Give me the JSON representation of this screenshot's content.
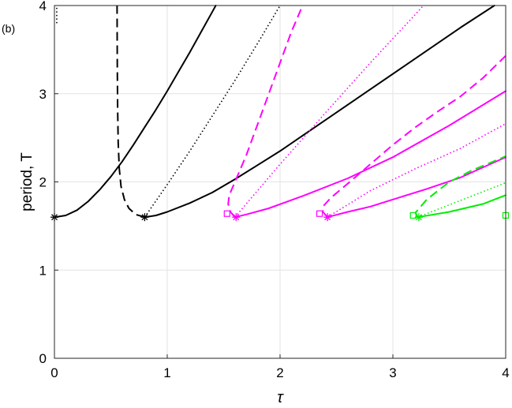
{
  "panel_label": "(b)",
  "chart_data": {
    "type": "line",
    "title": "",
    "xlabel": "τ",
    "ylabel": "period, T",
    "xlim": [
      0,
      4
    ],
    "ylim": [
      0,
      4
    ],
    "xticks": [
      0,
      1,
      2,
      3,
      4
    ],
    "yticks": [
      0,
      1,
      2,
      3,
      4
    ],
    "grid": true,
    "legend": "none",
    "series": [
      {
        "color": "#000000",
        "dash": "solid",
        "points": [
          [
            0,
            1.6
          ],
          [
            0.1,
            1.62
          ],
          [
            0.2,
            1.68
          ],
          [
            0.3,
            1.78
          ],
          [
            0.4,
            1.91
          ],
          [
            0.5,
            2.06
          ],
          [
            0.6,
            2.23
          ],
          [
            0.7,
            2.42
          ],
          [
            0.8,
            2.62
          ],
          [
            0.9,
            2.82
          ],
          [
            1.0,
            3.03
          ],
          [
            1.1,
            3.25
          ],
          [
            1.2,
            3.47
          ],
          [
            1.3,
            3.7
          ],
          [
            1.4,
            3.93
          ],
          [
            1.43,
            4.0
          ]
        ]
      },
      {
        "color": "#000000",
        "dash": "dashed",
        "points": [
          [
            0.8,
            1.6
          ],
          [
            0.72,
            1.63
          ],
          [
            0.66,
            1.7
          ],
          [
            0.62,
            1.8
          ],
          [
            0.59,
            1.95
          ],
          [
            0.575,
            2.15
          ],
          [
            0.565,
            2.45
          ],
          [
            0.56,
            2.85
          ],
          [
            0.557,
            3.3
          ],
          [
            0.556,
            3.7
          ],
          [
            0.555,
            4.0
          ]
        ]
      },
      {
        "color": "#000000",
        "dash": "dotted",
        "points": [
          [
            0.8,
            1.6
          ],
          [
            1.0,
            1.97
          ],
          [
            1.2,
            2.35
          ],
          [
            1.4,
            2.75
          ],
          [
            1.6,
            3.15
          ],
          [
            1.8,
            3.57
          ],
          [
            2.0,
            4.0
          ]
        ]
      },
      {
        "color": "#000000",
        "dash": "solid",
        "points": [
          [
            0.8,
            1.6
          ],
          [
            0.9,
            1.62
          ],
          [
            1.0,
            1.66
          ],
          [
            1.2,
            1.76
          ],
          [
            1.4,
            1.88
          ],
          [
            1.6,
            2.03
          ],
          [
            1.8,
            2.19
          ],
          [
            2.0,
            2.35
          ],
          [
            2.4,
            2.7
          ],
          [
            2.8,
            3.05
          ],
          [
            3.2,
            3.4
          ],
          [
            3.6,
            3.75
          ],
          [
            3.9,
            4.0
          ]
        ]
      },
      {
        "color": "#000000",
        "dash": "dotted",
        "points": [
          [
            0.02,
            3.8
          ],
          [
            0.02,
            4.0
          ]
        ]
      },
      {
        "color": "#ff00ff",
        "dash": "dashed",
        "points": [
          [
            1.6,
            1.6
          ],
          [
            1.56,
            1.66
          ],
          [
            1.54,
            1.75
          ],
          [
            1.55,
            1.85
          ],
          [
            1.6,
            2.0
          ],
          [
            1.7,
            2.3
          ],
          [
            1.8,
            2.65
          ],
          [
            1.9,
            3.0
          ],
          [
            2.0,
            3.35
          ],
          [
            2.1,
            3.7
          ],
          [
            2.2,
            4.0
          ]
        ]
      },
      {
        "color": "#ff00ff",
        "dash": "dotted",
        "points": [
          [
            1.6,
            1.6
          ],
          [
            2.0,
            2.2
          ],
          [
            2.4,
            2.78
          ],
          [
            2.8,
            3.35
          ],
          [
            3.2,
            3.9
          ],
          [
            3.27,
            4.0
          ]
        ]
      },
      {
        "color": "#ff00ff",
        "dash": "solid",
        "points": [
          [
            1.6,
            1.6
          ],
          [
            1.7,
            1.63
          ],
          [
            1.9,
            1.7
          ],
          [
            2.2,
            1.84
          ],
          [
            2.6,
            2.04
          ],
          [
            3.0,
            2.28
          ],
          [
            3.5,
            2.64
          ],
          [
            4.0,
            3.03
          ]
        ]
      },
      {
        "color": "#ff00ff",
        "dash": "dashed",
        "points": [
          [
            2.42,
            1.6
          ],
          [
            2.38,
            1.66
          ],
          [
            2.38,
            1.72
          ],
          [
            2.45,
            1.82
          ],
          [
            2.6,
            1.98
          ],
          [
            2.8,
            2.2
          ],
          [
            3.0,
            2.42
          ],
          [
            3.2,
            2.62
          ],
          [
            3.4,
            2.8
          ],
          [
            3.6,
            2.97
          ],
          [
            3.8,
            3.18
          ],
          [
            4.0,
            3.43
          ]
        ]
      },
      {
        "color": "#ff00ff",
        "dash": "dotted",
        "points": [
          [
            2.42,
            1.6
          ],
          [
            2.8,
            1.9
          ],
          [
            3.2,
            2.15
          ],
          [
            3.6,
            2.38
          ],
          [
            4.0,
            2.66
          ]
        ]
      },
      {
        "color": "#ff00ff",
        "dash": "solid",
        "points": [
          [
            2.42,
            1.6
          ],
          [
            2.6,
            1.66
          ],
          [
            2.8,
            1.72
          ],
          [
            3.0,
            1.8
          ],
          [
            3.3,
            1.92
          ],
          [
            3.6,
            2.05
          ],
          [
            4.0,
            2.28
          ]
        ]
      },
      {
        "color": "#00ee00",
        "dash": "dashed",
        "points": [
          [
            3.22,
            1.6
          ],
          [
            3.2,
            1.65
          ],
          [
            3.3,
            1.8
          ],
          [
            3.5,
            2.0
          ],
          [
            3.7,
            2.13
          ],
          [
            4.0,
            2.29
          ]
        ]
      },
      {
        "color": "#00ee00",
        "dash": "dotted",
        "points": [
          [
            3.22,
            1.6
          ],
          [
            3.5,
            1.74
          ],
          [
            3.8,
            1.89
          ],
          [
            4.0,
            1.99
          ]
        ]
      },
      {
        "color": "#00ee00",
        "dash": "solid",
        "points": [
          [
            3.22,
            1.6
          ],
          [
            3.5,
            1.66
          ],
          [
            3.8,
            1.75
          ],
          [
            4.0,
            1.85
          ]
        ]
      }
    ],
    "star_markers": [
      {
        "x": 0.0,
        "y": 1.6,
        "color": "#000000"
      },
      {
        "x": 0.8,
        "y": 1.6,
        "color": "#000000"
      },
      {
        "x": 1.61,
        "y": 1.6,
        "color": "#ff00ff"
      },
      {
        "x": 2.42,
        "y": 1.6,
        "color": "#ff00ff"
      },
      {
        "x": 3.23,
        "y": 1.6,
        "color": "#00ee00"
      }
    ],
    "square_markers": [
      {
        "x": 1.53,
        "y": 1.64,
        "color": "#ff00ff"
      },
      {
        "x": 2.35,
        "y": 1.64,
        "color": "#ff00ff"
      },
      {
        "x": 3.18,
        "y": 1.62,
        "color": "#00ee00"
      },
      {
        "x": 4.0,
        "y": 1.62,
        "color": "#00ee00"
      }
    ]
  }
}
